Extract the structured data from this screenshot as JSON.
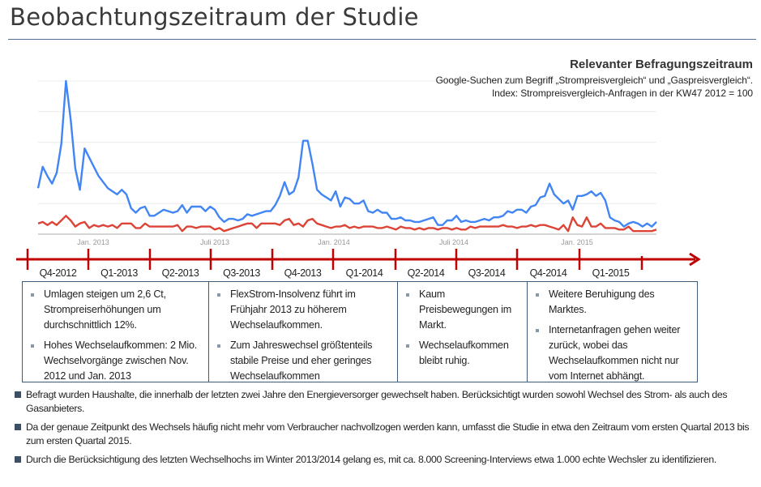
{
  "slide": {
    "title": "Beobachtungszeitraum der  Studie"
  },
  "legend": {
    "title": "Relevanter Befragungszeitraum",
    "line1": "Google-Suchen  zum Begriff „Strompreisvergleich“ und „Gaspreisvergleich“.",
    "line2": "Index: Strompreisvergleich-Anfragen  in der KW47 2012 = 100"
  },
  "chart_data": {
    "type": "line",
    "title": "",
    "xlabel": "",
    "ylabel": "",
    "ylim": [
      0,
      100
    ],
    "grid": true,
    "frequency": "weekly",
    "x_tick_labels": [
      "Jan. 2013",
      "Juli 2013",
      "Jan. 2014",
      "Juli 2014",
      "Jan. 2015"
    ],
    "series": [
      {
        "color": "#4285f4",
        "values": [
          30,
          44,
          38,
          33,
          40,
          59,
          100,
          75,
          43,
          29,
          56,
          50,
          44,
          38,
          34,
          30,
          28,
          26,
          29,
          26,
          17,
          14,
          17,
          18,
          12,
          12,
          14,
          16,
          15,
          14,
          15,
          19,
          14,
          18,
          18,
          18,
          15,
          18,
          16,
          11,
          8,
          10,
          10,
          9,
          10,
          13,
          12,
          13,
          14,
          15,
          15,
          19,
          25,
          34,
          26,
          28,
          37,
          61,
          61,
          46,
          29,
          26,
          24,
          22,
          28,
          18,
          24,
          23,
          20,
          20,
          22,
          15,
          14,
          16,
          14,
          14,
          10,
          10,
          11,
          9,
          9,
          8,
          8,
          9,
          10,
          11,
          6,
          6,
          9,
          9,
          12,
          8,
          9,
          8,
          8,
          9,
          10,
          9,
          11,
          11,
          12,
          15,
          14,
          16,
          16,
          14,
          18,
          19,
          24,
          25,
          33,
          26,
          23,
          20,
          22,
          16,
          25,
          25,
          26,
          28,
          25,
          27,
          22,
          11,
          9,
          8,
          5,
          7,
          8,
          7,
          5,
          7,
          5,
          8
        ]
      },
      {
        "color": "#db4437",
        "values": [
          7,
          8,
          6,
          8,
          6,
          9,
          12,
          9,
          5,
          7,
          8,
          4,
          6,
          5,
          6,
          5,
          6,
          4,
          7,
          7,
          7,
          4,
          4,
          7,
          5,
          5,
          5,
          5,
          5,
          5,
          6,
          2,
          5,
          5,
          4,
          5,
          5,
          5,
          3,
          4,
          2,
          3,
          4,
          5,
          6,
          7,
          7,
          4,
          7,
          7,
          7,
          7,
          6,
          9,
          10,
          6,
          7,
          5,
          9,
          10,
          7,
          6,
          5,
          4,
          5,
          5,
          6,
          4,
          5,
          4,
          5,
          5,
          5,
          4,
          4,
          5,
          4,
          3,
          5,
          4,
          4,
          3,
          4,
          3,
          4,
          4,
          3,
          4,
          4,
          3,
          4,
          3,
          3,
          5,
          4,
          5,
          5,
          5,
          5,
          5,
          6,
          5,
          5,
          4,
          5,
          5,
          6,
          5,
          6,
          6,
          5,
          4,
          3,
          6,
          2,
          11,
          6,
          5,
          11,
          5,
          5,
          7,
          4,
          4,
          4,
          3,
          3,
          5,
          2,
          2,
          2,
          2,
          2,
          3
        ]
      }
    ]
  },
  "timeline": {
    "color": "#c00000",
    "quarters": [
      "Q4-2012",
      "Q1-2013",
      "Q2-2013",
      "Q3-2013",
      "Q4-2013",
      "Q1-2014",
      "Q2-2014",
      "Q3-2014",
      "Q4-2014",
      "Q1-2015"
    ]
  },
  "boxes": [
    {
      "items": [
        "Umlagen steigen um 2,6 Ct, Strompreiserhöhungen um durchschnittlich 12%.",
        "Hohes Wechselaufkommen: 2 Mio. Wechselvorgänge zwischen Nov. 2012  und Jan. 2013"
      ]
    },
    {
      "items": [
        "FlexStrom-Insolvenz führt im Frühjahr 2013  zu höherem Wechselaufkommen.",
        "Zum Jahreswechsel größtenteils stabile Preise und eher geringes Wechselaufkommen"
      ]
    },
    {
      "items": [
        "Kaum Preisbewegungen im Markt.",
        "Wechselaufkommen bleibt ruhig."
      ]
    },
    {
      "items": [
        "Weitere Beruhigung des Marktes.",
        "Internetanfragen gehen weiter zurück, wobei das Wechselaufkommen nicht nur vom Internet abhängt."
      ]
    }
  ],
  "notes": [
    "Befragt wurden Haushalte, die innerhalb der letzten zwei Jahre den Energieversorger gewechselt haben. Berücksichtigt wurden sowohl Wechsel des Strom- als auch des Gasanbieters.",
    "Da der genaue Zeitpunkt des Wechsels häufig nicht mehr vom Verbraucher nachvollzogen werden kann, umfasst die Studie in etwa den Zeitraum vom ersten Quartal 2013  bis zum ersten Quartal 2015.",
    "Durch die Berücksichtigung des letzten Wechselhochs im Winter 2013/2014  gelang es, mit ca. 8.000  Screening-Interviews etwa 1.000 echte Wechsler zu identifizieren."
  ]
}
